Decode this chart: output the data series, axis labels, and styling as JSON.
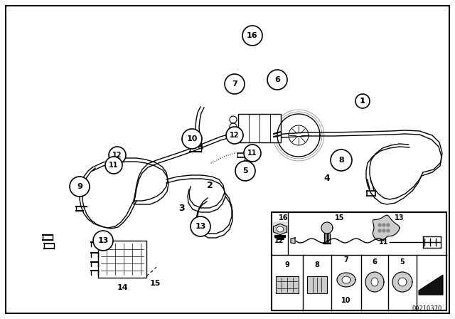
{
  "background_color": "#ffffff",
  "border_color": "#000000",
  "diagram_number": "00210370",
  "fig_w": 6.4,
  "fig_h": 4.48,
  "dpi": 100,
  "black": "#000000",
  "gray": "#888888",
  "lw": 1.0
}
